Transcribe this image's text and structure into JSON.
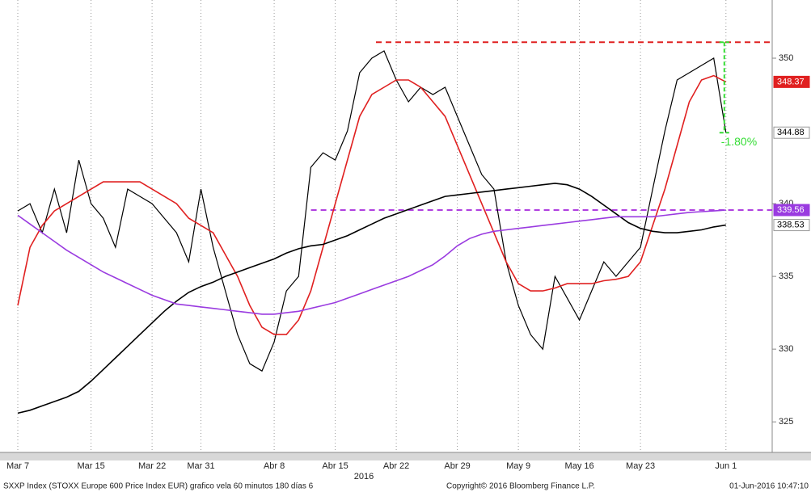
{
  "chart_data": {
    "type": "line",
    "categories": [
      "Mar 7",
      null,
      null,
      null,
      null,
      null,
      "Mar 15",
      null,
      null,
      null,
      null,
      "Mar 22",
      null,
      null,
      null,
      "Mar 31",
      null,
      null,
      null,
      null,
      null,
      "Abr 8",
      null,
      null,
      null,
      null,
      "Abr 15",
      null,
      null,
      null,
      null,
      "Abr 22",
      null,
      null,
      null,
      null,
      "Abr 29",
      null,
      null,
      null,
      null,
      "May 9",
      null,
      null,
      null,
      null,
      "May 16",
      null,
      null,
      null,
      null,
      "May 23",
      null,
      null,
      null,
      null,
      null,
      null,
      "Jun 1"
    ],
    "year_label": "2016",
    "series": [
      {
        "color": "#000000",
        "width": 1.2,
        "values": [
          339.5,
          340,
          338,
          341,
          338,
          343,
          340,
          339,
          337,
          341,
          340.5,
          340,
          339,
          338,
          336,
          341,
          337,
          334,
          331,
          329,
          328.5,
          330.5,
          334,
          335,
          342.5,
          343.5,
          343,
          345,
          349,
          350,
          350.5,
          348.5,
          347,
          348,
          347.5,
          348,
          346,
          344,
          342,
          341,
          336,
          333,
          331,
          330,
          335,
          333.5,
          332,
          334,
          336,
          335,
          336,
          337,
          341,
          345,
          348.5,
          349,
          349.5,
          350,
          344.88
        ]
      },
      {
        "color": "#e02020",
        "width": 1.6,
        "values": [
          333,
          337,
          338.5,
          339.5,
          340,
          340.5,
          341,
          341.5,
          341.5,
          341.5,
          341.5,
          341,
          340.5,
          340,
          339,
          338.5,
          338,
          336.5,
          335,
          333,
          331.5,
          331,
          331,
          332,
          334,
          337,
          340,
          343,
          346,
          347.5,
          348,
          348.5,
          348.5,
          348,
          347,
          346,
          344,
          342,
          340,
          338,
          336,
          334.5,
          334,
          334,
          334.2,
          334.5,
          334.5,
          334.5,
          334.7,
          334.8,
          335,
          336,
          338.5,
          341,
          344,
          347,
          348.5,
          348.8,
          348.37
        ]
      },
      {
        "color": "#000000",
        "width": 1.6,
        "values": [
          325.6,
          325.8,
          326.1,
          326.4,
          326.7,
          327.1,
          327.8,
          328.6,
          329.4,
          330.2,
          331,
          331.8,
          332.6,
          333.3,
          333.9,
          334.3,
          334.6,
          335,
          335.3,
          335.6,
          335.9,
          336.2,
          336.6,
          336.9,
          337.1,
          337.2,
          337.5,
          337.8,
          338.2,
          338.6,
          339,
          339.3,
          339.6,
          339.9,
          340.2,
          340.5,
          340.6,
          340.7,
          340.8,
          340.9,
          341,
          341.1,
          341.2,
          341.3,
          341.4,
          341.3,
          341,
          340.5,
          339.9,
          339.3,
          338.7,
          338.3,
          338.1,
          338,
          338,
          338.1,
          338.2,
          338.4,
          338.53
        ]
      },
      {
        "color": "#9a3be0",
        "width": 1.6,
        "values": [
          339.2,
          338.6,
          338,
          337.4,
          336.8,
          336.3,
          335.8,
          335.3,
          334.9,
          334.5,
          334.1,
          333.7,
          333.4,
          333.1,
          333,
          332.9,
          332.8,
          332.7,
          332.6,
          332.5,
          332.4,
          332.4,
          332.5,
          332.6,
          332.8,
          333,
          333.2,
          333.5,
          333.8,
          334.1,
          334.4,
          334.7,
          335,
          335.4,
          335.8,
          336.4,
          337.1,
          337.6,
          337.9,
          338.1,
          338.2,
          338.3,
          338.4,
          338.5,
          338.6,
          338.7,
          338.8,
          338.9,
          339,
          339.1,
          339.1,
          339.1,
          339.1,
          339.2,
          339.3,
          339.4,
          339.45,
          339.5,
          339.56
        ]
      }
    ],
    "last_label_colors": [
      [
        "#ffffff",
        "#000000"
      ],
      [
        "#e02020",
        "#ffffff"
      ],
      [
        "#ffffff",
        "#000000"
      ],
      [
        "#9a3be0",
        "#ffffff"
      ]
    ],
    "hlines": [
      {
        "value": 351.1,
        "color": "#e02020"
      },
      {
        "value": 339.56,
        "color": "#b040e0"
      }
    ],
    "annotation": {
      "text": "-1.80%",
      "color": "#33dd33"
    },
    "ylim": [
      322.9,
      354
    ],
    "yticks": [
      325,
      330,
      335,
      340,
      350
    ],
    "grid": true,
    "footer": {
      "left": "SXXP Index (STOXX Europe 600 Price Index EUR) grafico vela 60 minutos 180 días 6",
      "middle": "Copyright© 2016 Bloomberg Finance L.P.",
      "right": "01-Jun-2016 10:47:10"
    }
  }
}
